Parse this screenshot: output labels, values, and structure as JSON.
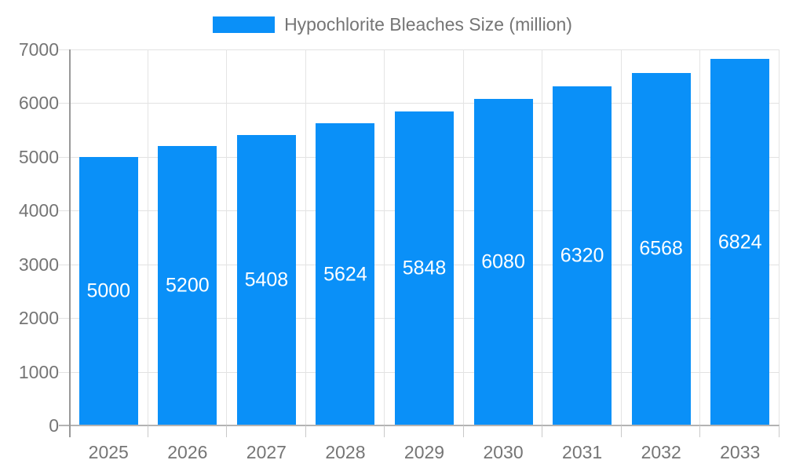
{
  "legend": {
    "label": "Hypochlorite Bleaches Size (million)"
  },
  "chart_data": {
    "type": "bar",
    "title": "Hypochlorite Bleaches Size (million)",
    "categories": [
      "2025",
      "2026",
      "2027",
      "2028",
      "2029",
      "2030",
      "2031",
      "2032",
      "2033"
    ],
    "values": [
      5000,
      5200,
      5408,
      5624,
      5848,
      6080,
      6320,
      6568,
      6824
    ],
    "bar_labels": [
      "5000",
      "5200",
      "5408",
      "5624",
      "5848",
      "6080",
      "6320",
      "6568",
      "6824"
    ],
    "xlabel": "",
    "ylabel": "",
    "ylim": [
      0,
      7000
    ],
    "yticks": [
      0,
      1000,
      2000,
      3000,
      4000,
      5000,
      6000,
      7000
    ],
    "grid": true,
    "legend_position": "top"
  },
  "colors": {
    "bar": "#0a90f8",
    "bar_label": "#ffffff",
    "axis_text": "#757575",
    "legend_text": "#757575",
    "gridline": "#e2e2e2",
    "vertical_gridline": "#e4e4e4",
    "axis_line": "#999999",
    "baseline": "#b3b3b3",
    "background": "#ffffff"
  }
}
